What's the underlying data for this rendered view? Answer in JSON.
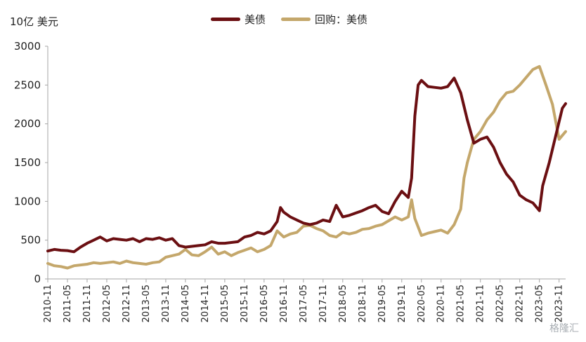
{
  "unit_label": "10亿 美元",
  "watermark": "格隆汇",
  "legend": [
    {
      "name": "美债",
      "color": "#6b0f12"
    },
    {
      "name": "回购：美债",
      "color": "#c4a76b"
    }
  ],
  "chart_data": {
    "type": "line",
    "ylim": [
      0,
      3000
    ],
    "yticks": [
      0,
      500,
      1000,
      1500,
      2000,
      2500,
      3000
    ],
    "xlim": [
      "2010-11",
      "2024-01"
    ],
    "xticks": [
      "2010-11",
      "2011-05",
      "2011-11",
      "2012-05",
      "2012-11",
      "2013-05",
      "2013-11",
      "2014-05",
      "2014-11",
      "2015-05",
      "2015-11",
      "2016-05",
      "2016-11",
      "2017-05",
      "2017-11",
      "2018-05",
      "2018-11",
      "2019-05",
      "2019-11",
      "2020-05",
      "2020-11",
      "2021-05",
      "2021-11",
      "2022-05",
      "2022-11",
      "2023-05",
      "2023-11"
    ],
    "grid": false,
    "legend_position": "top-center",
    "series": [
      {
        "name": "美债",
        "color": "#6b0f12",
        "points": [
          [
            "2010-11",
            360
          ],
          [
            "2011-01",
            380
          ],
          [
            "2011-03",
            370
          ],
          [
            "2011-05",
            365
          ],
          [
            "2011-07",
            350
          ],
          [
            "2011-09",
            410
          ],
          [
            "2011-11",
            460
          ],
          [
            "2012-01",
            500
          ],
          [
            "2012-03",
            540
          ],
          [
            "2012-05",
            490
          ],
          [
            "2012-07",
            520
          ],
          [
            "2012-09",
            510
          ],
          [
            "2012-11",
            500
          ],
          [
            "2013-01",
            520
          ],
          [
            "2013-03",
            480
          ],
          [
            "2013-05",
            520
          ],
          [
            "2013-07",
            510
          ],
          [
            "2013-09",
            530
          ],
          [
            "2013-11",
            500
          ],
          [
            "2014-01",
            520
          ],
          [
            "2014-03",
            430
          ],
          [
            "2014-05",
            410
          ],
          [
            "2014-07",
            420
          ],
          [
            "2014-09",
            430
          ],
          [
            "2014-11",
            440
          ],
          [
            "2015-01",
            480
          ],
          [
            "2015-03",
            460
          ],
          [
            "2015-05",
            460
          ],
          [
            "2015-07",
            470
          ],
          [
            "2015-09",
            480
          ],
          [
            "2015-11",
            540
          ],
          [
            "2016-01",
            560
          ],
          [
            "2016-03",
            600
          ],
          [
            "2016-05",
            580
          ],
          [
            "2016-07",
            620
          ],
          [
            "2016-09",
            740
          ],
          [
            "2016-10",
            920
          ],
          [
            "2016-11",
            860
          ],
          [
            "2017-01",
            800
          ],
          [
            "2017-03",
            760
          ],
          [
            "2017-05",
            720
          ],
          [
            "2017-07",
            700
          ],
          [
            "2017-09",
            720
          ],
          [
            "2017-11",
            760
          ],
          [
            "2018-01",
            740
          ],
          [
            "2018-03",
            950
          ],
          [
            "2018-05",
            800
          ],
          [
            "2018-07",
            820
          ],
          [
            "2018-09",
            850
          ],
          [
            "2018-11",
            880
          ],
          [
            "2019-01",
            920
          ],
          [
            "2019-03",
            950
          ],
          [
            "2019-05",
            870
          ],
          [
            "2019-07",
            840
          ],
          [
            "2019-09",
            1000
          ],
          [
            "2019-11",
            1130
          ],
          [
            "2020-01",
            1050
          ],
          [
            "2020-02",
            1300
          ],
          [
            "2020-03",
            2100
          ],
          [
            "2020-04",
            2500
          ],
          [
            "2020-05",
            2560
          ],
          [
            "2020-07",
            2480
          ],
          [
            "2020-09",
            2470
          ],
          [
            "2020-11",
            2460
          ],
          [
            "2021-01",
            2480
          ],
          [
            "2021-03",
            2590
          ],
          [
            "2021-05",
            2400
          ],
          [
            "2021-07",
            2050
          ],
          [
            "2021-09",
            1750
          ],
          [
            "2021-11",
            1800
          ],
          [
            "2022-01",
            1830
          ],
          [
            "2022-03",
            1700
          ],
          [
            "2022-05",
            1500
          ],
          [
            "2022-07",
            1350
          ],
          [
            "2022-09",
            1250
          ],
          [
            "2022-11",
            1080
          ],
          [
            "2023-01",
            1020
          ],
          [
            "2023-03",
            980
          ],
          [
            "2023-05",
            880
          ],
          [
            "2023-06",
            1200
          ],
          [
            "2023-08",
            1500
          ],
          [
            "2023-10",
            1850
          ],
          [
            "2023-12",
            2200
          ],
          [
            "2024-01",
            2260
          ]
        ]
      },
      {
        "name": "回购：美债",
        "color": "#c4a76b",
        "points": [
          [
            "2010-11",
            200
          ],
          [
            "2011-01",
            170
          ],
          [
            "2011-03",
            160
          ],
          [
            "2011-05",
            140
          ],
          [
            "2011-07",
            170
          ],
          [
            "2011-09",
            180
          ],
          [
            "2011-11",
            190
          ],
          [
            "2012-01",
            210
          ],
          [
            "2012-03",
            200
          ],
          [
            "2012-05",
            210
          ],
          [
            "2012-07",
            220
          ],
          [
            "2012-09",
            200
          ],
          [
            "2012-11",
            230
          ],
          [
            "2013-01",
            210
          ],
          [
            "2013-03",
            200
          ],
          [
            "2013-05",
            190
          ],
          [
            "2013-07",
            210
          ],
          [
            "2013-09",
            220
          ],
          [
            "2013-11",
            280
          ],
          [
            "2014-01",
            300
          ],
          [
            "2014-03",
            320
          ],
          [
            "2014-05",
            380
          ],
          [
            "2014-07",
            310
          ],
          [
            "2014-09",
            300
          ],
          [
            "2014-11",
            350
          ],
          [
            "2015-01",
            410
          ],
          [
            "2015-03",
            320
          ],
          [
            "2015-05",
            350
          ],
          [
            "2015-07",
            300
          ],
          [
            "2015-09",
            340
          ],
          [
            "2015-11",
            370
          ],
          [
            "2016-01",
            400
          ],
          [
            "2016-03",
            350
          ],
          [
            "2016-05",
            380
          ],
          [
            "2016-07",
            430
          ],
          [
            "2016-09",
            620
          ],
          [
            "2016-11",
            540
          ],
          [
            "2017-01",
            580
          ],
          [
            "2017-03",
            600
          ],
          [
            "2017-05",
            680
          ],
          [
            "2017-07",
            690
          ],
          [
            "2017-09",
            650
          ],
          [
            "2017-11",
            620
          ],
          [
            "2018-01",
            560
          ],
          [
            "2018-03",
            540
          ],
          [
            "2018-05",
            600
          ],
          [
            "2018-07",
            580
          ],
          [
            "2018-09",
            600
          ],
          [
            "2018-11",
            640
          ],
          [
            "2019-01",
            650
          ],
          [
            "2019-03",
            680
          ],
          [
            "2019-05",
            700
          ],
          [
            "2019-07",
            750
          ],
          [
            "2019-09",
            800
          ],
          [
            "2019-11",
            760
          ],
          [
            "2020-01",
            800
          ],
          [
            "2020-02",
            1020
          ],
          [
            "2020-03",
            780
          ],
          [
            "2020-05",
            560
          ],
          [
            "2020-07",
            590
          ],
          [
            "2020-09",
            610
          ],
          [
            "2020-11",
            630
          ],
          [
            "2021-01",
            590
          ],
          [
            "2021-03",
            700
          ],
          [
            "2021-05",
            900
          ],
          [
            "2021-06",
            1300
          ],
          [
            "2021-07",
            1500
          ],
          [
            "2021-08",
            1650
          ],
          [
            "2021-09",
            1800
          ],
          [
            "2021-11",
            1900
          ],
          [
            "2022-01",
            2050
          ],
          [
            "2022-03",
            2150
          ],
          [
            "2022-05",
            2300
          ],
          [
            "2022-07",
            2400
          ],
          [
            "2022-09",
            2420
          ],
          [
            "2022-11",
            2500
          ],
          [
            "2023-01",
            2600
          ],
          [
            "2023-03",
            2700
          ],
          [
            "2023-05",
            2740
          ],
          [
            "2023-07",
            2500
          ],
          [
            "2023-09",
            2250
          ],
          [
            "2023-11",
            1800
          ],
          [
            "2024-01",
            1900
          ]
        ]
      }
    ]
  }
}
